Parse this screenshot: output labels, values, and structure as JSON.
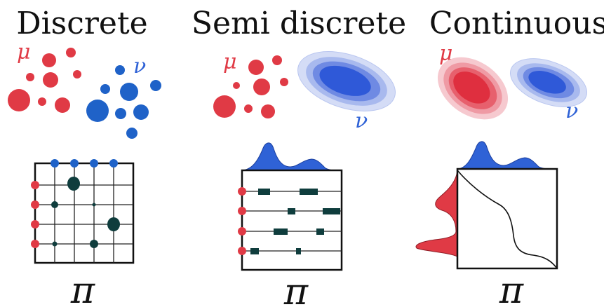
{
  "panels": {
    "discrete": {
      "title": "Discrete",
      "mu": "μ",
      "nu": "ν",
      "pi": "π"
    },
    "semi": {
      "title": "Semi discrete",
      "mu": "μ",
      "nu": "ν",
      "pi": "π"
    },
    "continuous": {
      "title": "Continuous",
      "mu": "μ",
      "nu": "ν",
      "pi": "π"
    }
  },
  "colors": {
    "red": "#e03a45",
    "blue": "#2f62d6",
    "plan": "#0f3d3d"
  }
}
